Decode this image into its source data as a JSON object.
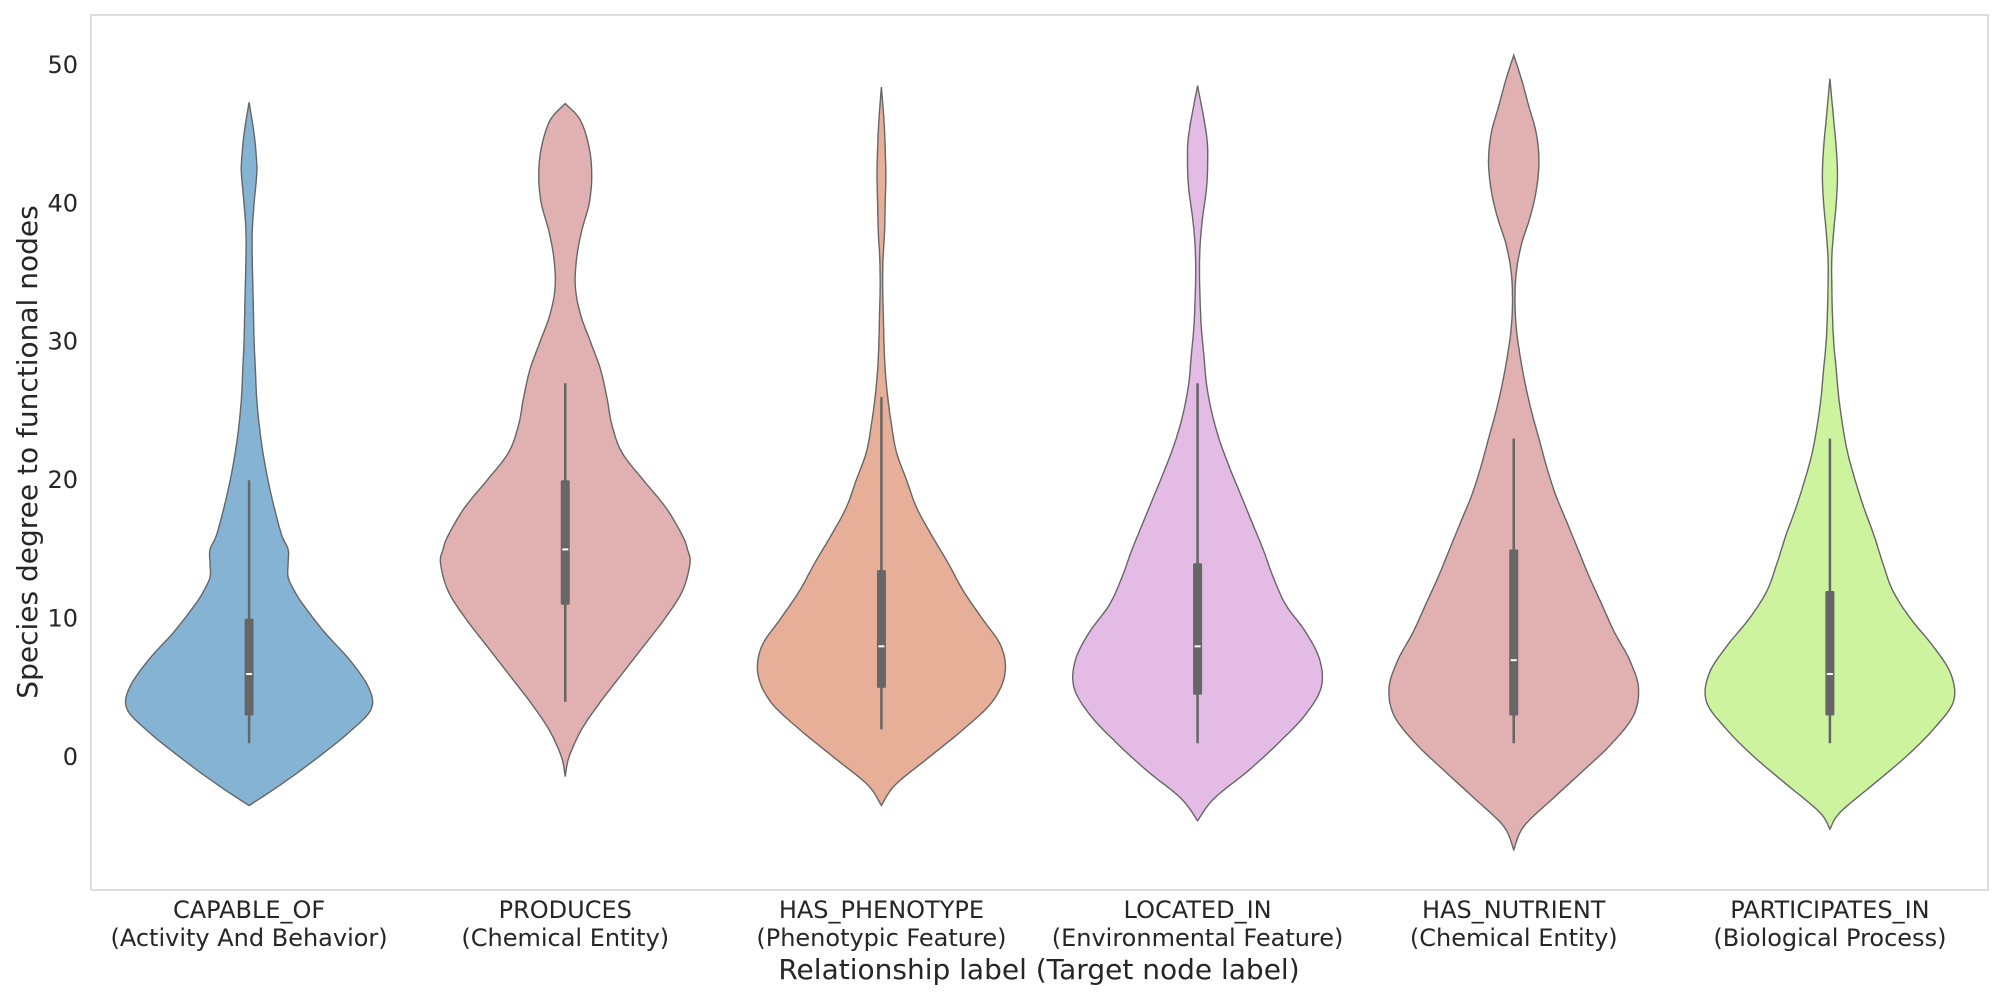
{
  "chart_data": {
    "type": "violin",
    "xlabel": "Relationship label (Target node label)",
    "ylabel": "Species degree to functional nodes",
    "ylim": [
      -9.6,
      53.6
    ],
    "yticks": [
      0,
      10,
      20,
      30,
      40,
      50
    ],
    "grid": false,
    "colors": {
      "body_outline": "#666666",
      "box": "#666666",
      "median": "#ffffff",
      "frame": "#d3d3d3"
    },
    "categories": [
      {
        "name": "CAPABLE_OF",
        "target": "(Activity And Behavior)",
        "color": "#85b3d3",
        "box": {
          "q1": 3,
          "median": 6,
          "q3": 10,
          "whisker_low": 1,
          "whisker_high": 20
        },
        "profile": [
          [
            -3.5,
            0.0
          ],
          [
            -2,
            25
          ],
          [
            0,
            55
          ],
          [
            2,
            82
          ],
          [
            3.5,
            97
          ],
          [
            5,
            95
          ],
          [
            7,
            80
          ],
          [
            9,
            60
          ],
          [
            11,
            43
          ],
          [
            12,
            36
          ],
          [
            13,
            31
          ],
          [
            14,
            31
          ],
          [
            15,
            31
          ],
          [
            16,
            26
          ],
          [
            18,
            20
          ],
          [
            20,
            15
          ],
          [
            22,
            11
          ],
          [
            24,
            8
          ],
          [
            26,
            6
          ],
          [
            28,
            5
          ],
          [
            30,
            4
          ],
          [
            32,
            3.5
          ],
          [
            34,
            3
          ],
          [
            36,
            2.5
          ],
          [
            38,
            2.5
          ],
          [
            40,
            4
          ],
          [
            42,
            6
          ],
          [
            43,
            6
          ],
          [
            45,
            4
          ],
          [
            47.3,
            0.0
          ]
        ]
      },
      {
        "name": "PRODUCES",
        "target": "(Chemical Entity)",
        "color": "#e1b0b0",
        "box": {
          "q1": 11,
          "median": 15,
          "q3": 20,
          "whisker_low": 4,
          "whisker_high": 27
        },
        "profile": [
          [
            -1.4,
            0.0
          ],
          [
            0,
            3
          ],
          [
            2,
            13
          ],
          [
            4,
            28
          ],
          [
            6,
            45
          ],
          [
            8,
            62
          ],
          [
            10,
            79
          ],
          [
            12,
            93
          ],
          [
            14,
            99
          ],
          [
            15,
            97
          ],
          [
            16,
            93
          ],
          [
            18,
            80
          ],
          [
            20,
            62
          ],
          [
            22,
            45
          ],
          [
            24,
            37
          ],
          [
            26,
            33
          ],
          [
            28,
            28
          ],
          [
            30,
            20
          ],
          [
            32,
            12
          ],
          [
            34,
            8
          ],
          [
            36,
            9
          ],
          [
            38,
            13
          ],
          [
            40,
            19
          ],
          [
            42,
            21
          ],
          [
            44,
            19
          ],
          [
            46,
            12
          ],
          [
            47.2,
            0.0
          ]
        ]
      },
      {
        "name": "HAS_PHENOTYPE",
        "target": "(Phenotypic Feature)",
        "color": "#e8af98",
        "box": {
          "q1": 5,
          "median": 8,
          "q3": 13.5,
          "whisker_low": 2,
          "whisker_high": 26
        },
        "profile": [
          [
            -3.5,
            0.0
          ],
          [
            -2,
            11
          ],
          [
            0,
            38
          ],
          [
            2,
            65
          ],
          [
            4,
            88
          ],
          [
            6,
            98
          ],
          [
            8,
            95
          ],
          [
            10,
            80
          ],
          [
            12,
            65
          ],
          [
            14,
            53
          ],
          [
            16,
            40
          ],
          [
            18,
            28
          ],
          [
            20,
            20
          ],
          [
            22,
            12
          ],
          [
            24,
            8
          ],
          [
            26,
            5
          ],
          [
            28,
            3
          ],
          [
            30,
            2
          ],
          [
            32,
            1.5
          ],
          [
            34,
            1
          ],
          [
            36,
            1.3
          ],
          [
            38,
            2.5
          ],
          [
            40,
            3
          ],
          [
            42,
            3.5
          ],
          [
            44,
            3
          ],
          [
            46,
            2
          ],
          [
            48.4,
            0.0
          ]
        ]
      },
      {
        "name": "LOCATED_IN",
        "target": "(Environmental Feature)",
        "color": "#e3bbe5",
        "box": {
          "q1": 4.5,
          "median": 8,
          "q3": 14,
          "whisker_low": 1,
          "whisker_high": 27
        },
        "profile": [
          [
            -4.6,
            0.0
          ],
          [
            -3,
            13
          ],
          [
            -1,
            40
          ],
          [
            1,
            64
          ],
          [
            3,
            85
          ],
          [
            5,
            98
          ],
          [
            7,
            97
          ],
          [
            9,
            86
          ],
          [
            11,
            70
          ],
          [
            13,
            60
          ],
          [
            15,
            52
          ],
          [
            17,
            43
          ],
          [
            19,
            34
          ],
          [
            21,
            25
          ],
          [
            23,
            17
          ],
          [
            25,
            11
          ],
          [
            27,
            7
          ],
          [
            29,
            5
          ],
          [
            31,
            3
          ],
          [
            33,
            2
          ],
          [
            35,
            1.5
          ],
          [
            37,
            2
          ],
          [
            39,
            4
          ],
          [
            41,
            7
          ],
          [
            43,
            8
          ],
          [
            45,
            7
          ],
          [
            48.5,
            0.0
          ]
        ]
      },
      {
        "name": "HAS_NUTRIENT",
        "target": "(Chemical Entity)",
        "color": "#e1b0b0",
        "box": {
          "q1": 3,
          "median": 7,
          "q3": 15,
          "whisker_low": 1,
          "whisker_high": 23
        },
        "profile": [
          [
            -6.7,
            0.0
          ],
          [
            -5,
            8
          ],
          [
            -3,
            31
          ],
          [
            -1,
            55
          ],
          [
            1,
            78
          ],
          [
            3,
            95
          ],
          [
            5,
            99
          ],
          [
            7,
            92
          ],
          [
            9,
            80
          ],
          [
            11,
            70
          ],
          [
            13,
            60
          ],
          [
            15,
            51
          ],
          [
            17,
            42
          ],
          [
            19,
            33
          ],
          [
            21,
            26
          ],
          [
            23,
            20
          ],
          [
            25,
            14
          ],
          [
            27,
            9
          ],
          [
            29,
            5
          ],
          [
            31,
            2
          ],
          [
            33,
            1
          ],
          [
            35,
            2
          ],
          [
            37,
            6
          ],
          [
            39,
            13
          ],
          [
            41,
            18
          ],
          [
            43,
            20
          ],
          [
            45,
            18
          ],
          [
            47,
            12
          ],
          [
            49,
            6
          ],
          [
            50.7,
            0.0
          ]
        ]
      },
      {
        "name": "PARTICIPATES_IN",
        "target": "(Biological Process)",
        "color": "#cef39f",
        "box": {
          "q1": 3,
          "median": 6,
          "q3": 12,
          "whisker_low": 1,
          "whisker_high": 23
        },
        "profile": [
          [
            -5.2,
            0.0
          ],
          [
            -4,
            8
          ],
          [
            -2,
            34
          ],
          [
            0,
            60
          ],
          [
            2,
            82
          ],
          [
            4,
            98
          ],
          [
            6,
            96
          ],
          [
            8,
            82
          ],
          [
            10,
            64
          ],
          [
            12,
            50
          ],
          [
            14,
            42
          ],
          [
            16,
            35
          ],
          [
            18,
            27
          ],
          [
            20,
            20
          ],
          [
            22,
            14
          ],
          [
            24,
            10
          ],
          [
            26,
            7
          ],
          [
            28,
            5
          ],
          [
            30,
            3
          ],
          [
            32,
            2
          ],
          [
            34,
            1.5
          ],
          [
            36,
            1.5
          ],
          [
            38,
            3
          ],
          [
            40,
            5
          ],
          [
            42,
            6
          ],
          [
            44,
            5
          ],
          [
            46,
            3
          ],
          [
            49,
            0.0
          ]
        ]
      }
    ]
  }
}
